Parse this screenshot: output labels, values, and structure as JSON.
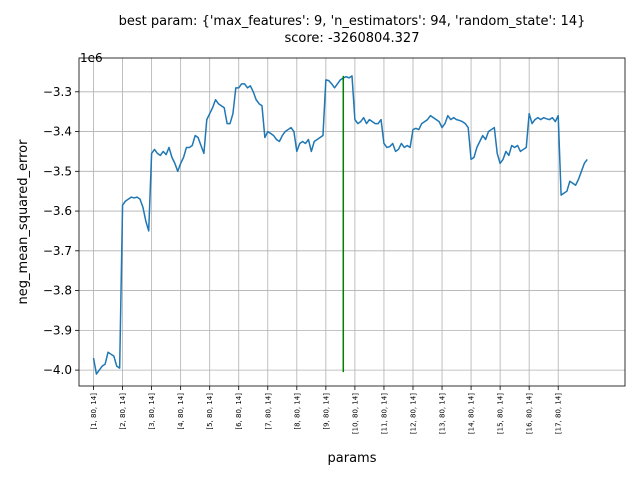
{
  "chart_data": {
    "type": "line",
    "title_line1": "best param: {'max_features': 9, 'n_estimators': 94, 'random_state': 14}",
    "title_line2": "score: -3260804.327",
    "xlabel": "params",
    "ylabel": "neg_mean_squared_error",
    "y_offset_label": "1e6",
    "y_scale": 1000000,
    "ylim": [
      -4.04,
      -3.215
    ],
    "yticks": [
      -4.0,
      -3.9,
      -3.8,
      -3.7,
      -3.6,
      -3.5,
      -3.4,
      -3.3
    ],
    "ytick_labels": [
      "−4.0",
      "−3.9",
      "−3.8",
      "−3.7",
      "−3.6",
      "−3.5",
      "−3.4",
      "−3.3"
    ],
    "xlim": [
      -5,
      183
    ],
    "xticks": [
      0,
      10,
      20,
      30,
      40,
      50,
      60,
      70,
      80,
      90,
      100,
      110,
      120,
      130,
      140,
      150,
      160
    ],
    "xtick_labels": [
      "[1, 80, 14]",
      "[2, 80, 14]",
      "[3, 80, 14]",
      "[4, 80, 14]",
      "[5, 80, 14]",
      "[6, 80, 14]",
      "[7, 80, 14]",
      "[8, 80, 14]",
      "[9, 80, 14]",
      "[10, 80, 14]",
      "[11, 80, 14]",
      "[12, 80, 14]",
      "[13, 80, 14]",
      "[14, 80, 14]",
      "[15, 80, 14]",
      "[16, 80, 14]",
      "[17, 80, 14]"
    ],
    "grid": true,
    "series": [
      {
        "color": "#1f77b4",
        "values": [
          -3.97,
          -4.01,
          -4.0,
          -3.99,
          -3.985,
          -3.955,
          -3.96,
          -3.965,
          -3.99,
          -3.995,
          -3.585,
          -3.575,
          -3.57,
          -3.565,
          -3.567,
          -3.565,
          -3.57,
          -3.59,
          -3.625,
          -3.65,
          -3.455,
          -3.445,
          -3.455,
          -3.46,
          -3.45,
          -3.458,
          -3.44,
          -3.465,
          -3.48,
          -3.5,
          -3.48,
          -3.465,
          -3.44,
          -3.44,
          -3.435,
          -3.41,
          -3.415,
          -3.435,
          -3.455,
          -3.37,
          -3.355,
          -3.34,
          -3.32,
          -3.33,
          -3.335,
          -3.34,
          -3.38,
          -3.38,
          -3.355,
          -3.29,
          -3.29,
          -3.28,
          -3.28,
          -3.29,
          -3.285,
          -3.3,
          -3.32,
          -3.33,
          -3.335,
          -3.415,
          -3.4,
          -3.405,
          -3.41,
          -3.42,
          -3.425,
          -3.41,
          -3.4,
          -3.395,
          -3.39,
          -3.4,
          -3.45,
          -3.43,
          -3.425,
          -3.43,
          -3.42,
          -3.45,
          -3.425,
          -3.42,
          -3.415,
          -3.41,
          -3.27,
          -3.272,
          -3.28,
          -3.29,
          -3.28,
          -3.27,
          -3.265,
          -3.262,
          -3.265,
          -3.26,
          -3.37,
          -3.38,
          -3.375,
          -3.365,
          -3.38,
          -3.37,
          -3.375,
          -3.38,
          -3.38,
          -3.37,
          -3.43,
          -3.44,
          -3.438,
          -3.43,
          -3.45,
          -3.445,
          -3.43,
          -3.44,
          -3.435,
          -3.44,
          -3.395,
          -3.392,
          -3.395,
          -3.38,
          -3.375,
          -3.37,
          -3.36,
          -3.365,
          -3.37,
          -3.375,
          -3.39,
          -3.38,
          -3.36,
          -3.37,
          -3.365,
          -3.37,
          -3.372,
          -3.375,
          -3.38,
          -3.39,
          -3.47,
          -3.465,
          -3.44,
          -3.425,
          -3.41,
          -3.42,
          -3.4,
          -3.395,
          -3.39,
          -3.455,
          -3.48,
          -3.47,
          -3.45,
          -3.46,
          -3.435,
          -3.44,
          -3.435,
          -3.45,
          -3.445,
          -3.44,
          -3.355,
          -3.38,
          -3.37,
          -3.365,
          -3.37,
          -3.365,
          -3.368,
          -3.37,
          -3.365,
          -3.375,
          -3.36,
          -3.56,
          -3.555,
          -3.55,
          -3.525,
          -3.53,
          -3.535,
          -3.52,
          -3.5,
          -3.48,
          -3.47
        ]
      }
    ],
    "best_marker": {
      "x": 86,
      "y_from": -4.005,
      "y_to": -3.26,
      "color": "#008000"
    }
  }
}
